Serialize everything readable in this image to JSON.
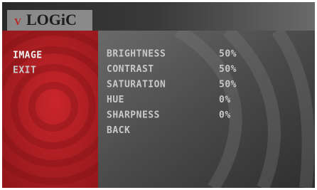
{
  "header": {
    "logo_mark": "V",
    "logo_text": "LOGiC"
  },
  "sidebar": {
    "items": [
      "IMAGE",
      "EXIT"
    ]
  },
  "settings": {
    "rows": [
      {
        "label": "BRIGHTNESS",
        "value": "50%"
      },
      {
        "label": "CONTRAST",
        "value": "50%"
      },
      {
        "label": "SATURATION",
        "value": "50%"
      },
      {
        "label": "HUE",
        "value": "0%"
      },
      {
        "label": "SHARPNESS",
        "value": "0%"
      }
    ],
    "back": "BACK"
  }
}
